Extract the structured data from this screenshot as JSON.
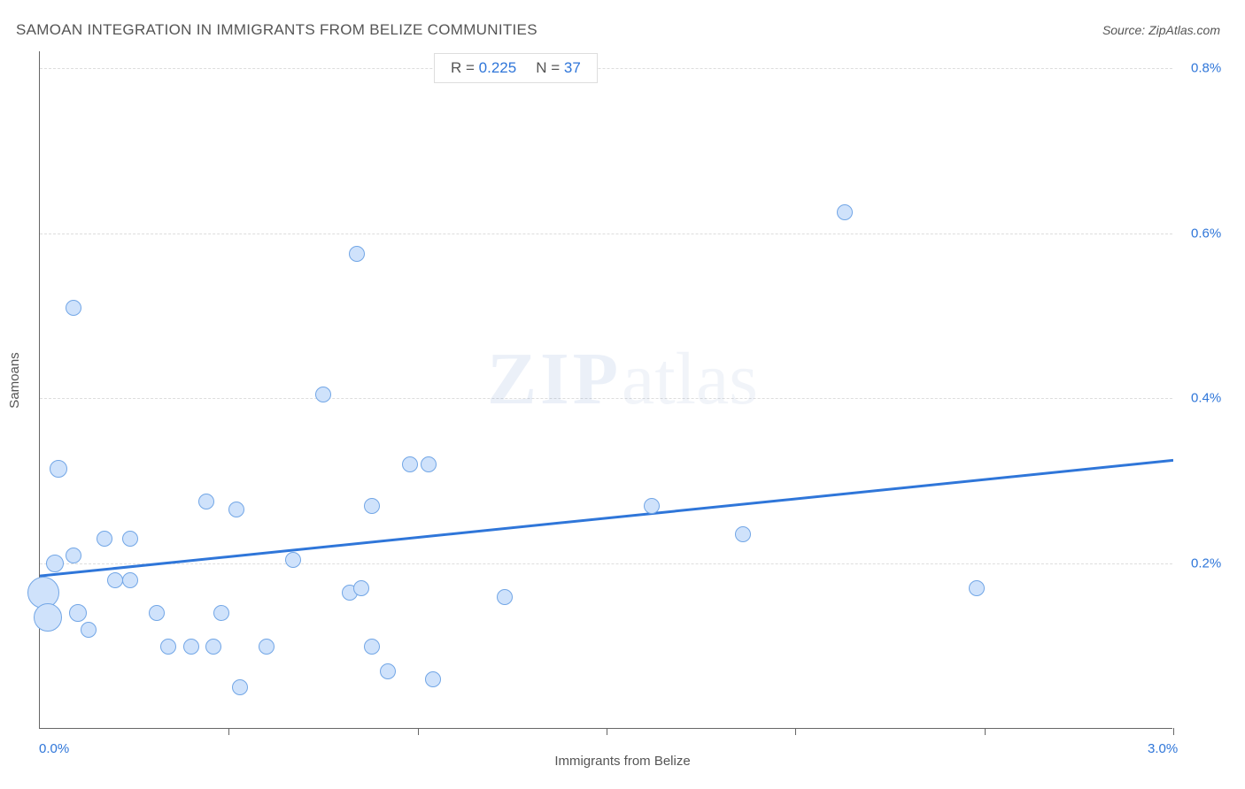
{
  "title": "SAMOAN INTEGRATION IN IMMIGRANTS FROM BELIZE COMMUNITIES",
  "source": "Source: ZipAtlas.com",
  "watermark_zip": "ZIP",
  "watermark_atlas": "atlas",
  "stats": {
    "r_label": "R = ",
    "r_value": "0.225",
    "n_label": "N = ",
    "n_value": "37"
  },
  "chart": {
    "type": "scatter",
    "xlabel": "Immigrants from Belize",
    "ylabel": "Samoans",
    "xlim": [
      0.0,
      3.0
    ],
    "ylim": [
      0.0,
      0.82
    ],
    "yticks": [
      0.2,
      0.4,
      0.6,
      0.8
    ],
    "ytick_labels": [
      "0.2%",
      "0.4%",
      "0.6%",
      "0.8%"
    ],
    "xticks": [
      0.5,
      1.0,
      1.5,
      2.0,
      2.5,
      3.0
    ],
    "xlim_label_left": "0.0%",
    "xlim_label_right": "3.0%",
    "point_fill": "#cfe2fb",
    "point_stroke": "#72a6e6",
    "point_stroke_width": 1,
    "trend_color": "#2f76d9",
    "trend_width": 3,
    "trend_y_at_xmin": 0.185,
    "trend_y_at_xmax": 0.325,
    "grid_color": "#dddddd",
    "axis_color": "#666666",
    "ytick_label_color": "#2f76d9",
    "xlim_label_color": "#2f76d9",
    "points": [
      {
        "x": 0.01,
        "y": 0.165,
        "r": 18
      },
      {
        "x": 0.02,
        "y": 0.135,
        "r": 16
      },
      {
        "x": 0.04,
        "y": 0.2,
        "r": 10
      },
      {
        "x": 0.05,
        "y": 0.315,
        "r": 10
      },
      {
        "x": 0.09,
        "y": 0.51,
        "r": 9
      },
      {
        "x": 0.09,
        "y": 0.21,
        "r": 9
      },
      {
        "x": 0.1,
        "y": 0.14,
        "r": 10
      },
      {
        "x": 0.13,
        "y": 0.12,
        "r": 9
      },
      {
        "x": 0.17,
        "y": 0.23,
        "r": 9
      },
      {
        "x": 0.2,
        "y": 0.18,
        "r": 9
      },
      {
        "x": 0.24,
        "y": 0.18,
        "r": 9
      },
      {
        "x": 0.24,
        "y": 0.23,
        "r": 9
      },
      {
        "x": 0.31,
        "y": 0.14,
        "r": 9
      },
      {
        "x": 0.34,
        "y": 0.1,
        "r": 9
      },
      {
        "x": 0.4,
        "y": 0.1,
        "r": 9
      },
      {
        "x": 0.44,
        "y": 0.275,
        "r": 9
      },
      {
        "x": 0.46,
        "y": 0.1,
        "r": 9
      },
      {
        "x": 0.48,
        "y": 0.14,
        "r": 9
      },
      {
        "x": 0.52,
        "y": 0.265,
        "r": 9
      },
      {
        "x": 0.53,
        "y": 0.05,
        "r": 9
      },
      {
        "x": 0.6,
        "y": 0.1,
        "r": 9
      },
      {
        "x": 0.67,
        "y": 0.205,
        "r": 9
      },
      {
        "x": 0.75,
        "y": 0.405,
        "r": 9
      },
      {
        "x": 0.82,
        "y": 0.165,
        "r": 9
      },
      {
        "x": 0.84,
        "y": 0.575,
        "r": 9
      },
      {
        "x": 0.85,
        "y": 0.17,
        "r": 9
      },
      {
        "x": 0.88,
        "y": 0.1,
        "r": 9
      },
      {
        "x": 0.88,
        "y": 0.27,
        "r": 9
      },
      {
        "x": 0.92,
        "y": 0.07,
        "r": 9
      },
      {
        "x": 0.98,
        "y": 0.32,
        "r": 9
      },
      {
        "x": 1.03,
        "y": 0.32,
        "r": 9
      },
      {
        "x": 1.04,
        "y": 0.06,
        "r": 9
      },
      {
        "x": 1.23,
        "y": 0.16,
        "r": 9
      },
      {
        "x": 1.62,
        "y": 0.27,
        "r": 9
      },
      {
        "x": 1.86,
        "y": 0.235,
        "r": 9
      },
      {
        "x": 2.13,
        "y": 0.625,
        "r": 9
      },
      {
        "x": 2.48,
        "y": 0.17,
        "r": 9
      }
    ]
  }
}
